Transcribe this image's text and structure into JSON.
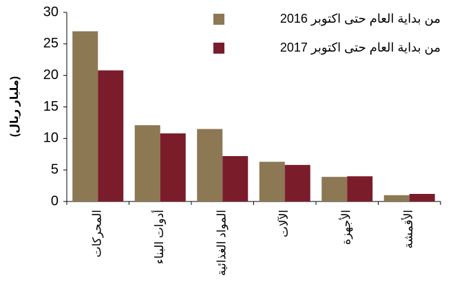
{
  "chart_data": {
    "type": "bar",
    "ylabel": "(مليار ريال)",
    "categories": [
      "المحركات",
      "أدوات البناء",
      "المواد الغذائية",
      "الآلات",
      "الأجهزة",
      "الأقمشة"
    ],
    "series": [
      {
        "name": "من بداية العام حتى اكتوبر 2016",
        "color": "#8c7853",
        "values": [
          27.0,
          12.1,
          11.5,
          6.3,
          3.9,
          1.0
        ]
      },
      {
        "name": "من بداية العام حتى اكتوبر 2017",
        "color": "#7b1c2a",
        "values": [
          20.8,
          10.8,
          7.2,
          5.8,
          4.0,
          1.2
        ]
      }
    ],
    "ylim": [
      0,
      30
    ],
    "yticks": [
      0,
      5,
      10,
      15,
      20,
      25,
      30
    ],
    "grid": false,
    "legend": "upper right"
  }
}
